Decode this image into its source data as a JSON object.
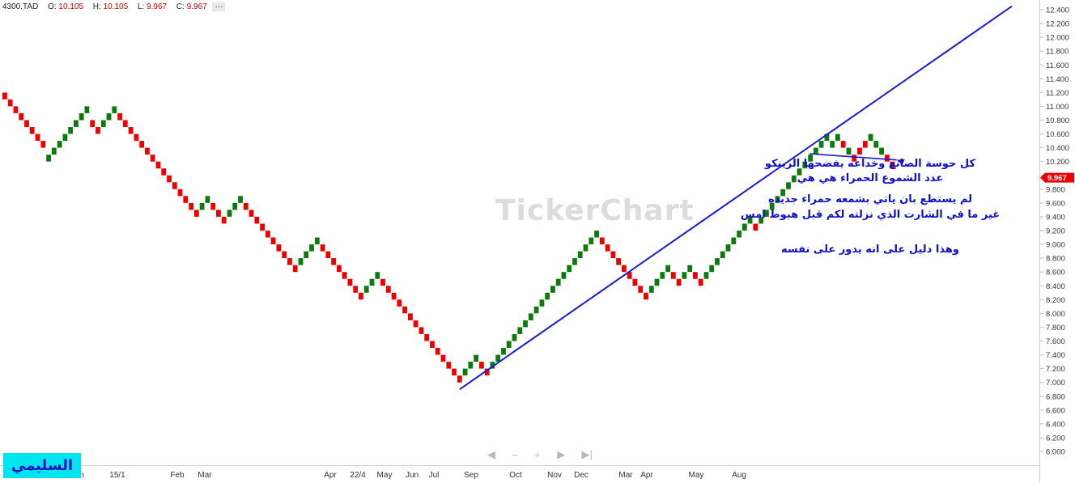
{
  "header": {
    "symbol": "4300.TAD",
    "open_label": "O:",
    "open": "10.105",
    "high_label": "H:",
    "high": "10.105",
    "low_label": "L:",
    "low": "9.967",
    "close_label": "C:",
    "close": "9.967",
    "more": "···"
  },
  "watermark": "TickerChart",
  "annotations": {
    "line1": "كل حوسة الصانع وخداعه يفضحها الرينكو",
    "line2": "عدد الشموع الحمراء هي هي",
    "line3": "لم يستطع بان ياتي بشمعه حمراء جديده",
    "line4": "غير ما في الشارت الذي نزلته لكم قبل هبوط امس",
    "line5": "وهذا دليل على انه يدور على نفسه"
  },
  "brand": "السليمي",
  "navigator": [
    "◀",
    "−",
    "+",
    "▶",
    "▶|"
  ],
  "colors": {
    "up": "#0d7a0d",
    "down": "#ee0000",
    "trendline": "#1a1ad6",
    "price_tag": "#ee0000",
    "annotation": "#1010c8"
  },
  "chart_data": {
    "type": "renko",
    "brick_size": 0.1,
    "ylim": [
      5.9,
      12.45
    ],
    "ytick_labels": [
      "12.400",
      "12.200",
      "12.000",
      "11.800",
      "11.600",
      "11.400",
      "11.200",
      "11.000",
      "10.800",
      "10.600",
      "10.400",
      "10.200",
      "10.000",
      "9.800",
      "9.600",
      "9.400",
      "9.200",
      "9.000",
      "8.800",
      "8.600",
      "8.400",
      "8.200",
      "8.000",
      "7.800",
      "7.600",
      "7.400",
      "7.200",
      "7.000",
      "6.800",
      "6.600",
      "6.400",
      "6.200",
      "6.000"
    ],
    "xtick_labels": [
      "Jan",
      "15/1",
      "Feb",
      "Mar",
      "Apr",
      "22/4",
      "May",
      "Jun",
      "Jul",
      "Sep",
      "Oct",
      "Nov",
      "Dec",
      "Mar",
      "Apr",
      "May",
      "Aug"
    ],
    "current_price": "9.967",
    "brick_tops": [
      11.2,
      11.1,
      11.0,
      10.9,
      10.8,
      10.7,
      10.6,
      10.5,
      10.3,
      10.4,
      10.5,
      10.6,
      10.7,
      10.8,
      10.9,
      11.0,
      10.8,
      10.7,
      10.8,
      10.9,
      11.0,
      10.9,
      10.8,
      10.7,
      10.6,
      10.5,
      10.4,
      10.3,
      10.2,
      10.1,
      10.0,
      9.9,
      9.8,
      9.7,
      9.6,
      9.5,
      9.6,
      9.7,
      9.6,
      9.5,
      9.4,
      9.5,
      9.6,
      9.7,
      9.6,
      9.5,
      9.4,
      9.3,
      9.2,
      9.1,
      9.0,
      8.9,
      8.8,
      8.7,
      8.8,
      8.9,
      9.0,
      9.1,
      9.0,
      8.9,
      8.8,
      8.7,
      8.6,
      8.5,
      8.4,
      8.3,
      8.4,
      8.5,
      8.6,
      8.5,
      8.4,
      8.3,
      8.2,
      8.1,
      8.0,
      7.9,
      7.8,
      7.7,
      7.6,
      7.5,
      7.4,
      7.3,
      7.2,
      7.1,
      7.2,
      7.3,
      7.4,
      7.3,
      7.2,
      7.3,
      7.4,
      7.5,
      7.6,
      7.7,
      7.8,
      7.9,
      8.0,
      8.1,
      8.2,
      8.3,
      8.4,
      8.5,
      8.6,
      8.7,
      8.8,
      8.9,
      9.0,
      9.1,
      9.2,
      9.1,
      9.0,
      8.9,
      8.8,
      8.7,
      8.6,
      8.5,
      8.4,
      8.3,
      8.4,
      8.5,
      8.6,
      8.7,
      8.6,
      8.5,
      8.6,
      8.7,
      8.6,
      8.5,
      8.6,
      8.7,
      8.8,
      8.9,
      9.0,
      9.1,
      9.2,
      9.3,
      9.4,
      9.3,
      9.4,
      9.5,
      9.6,
      9.7,
      9.8,
      9.9,
      10.0,
      10.1,
      10.2,
      10.3,
      10.4,
      10.5,
      10.6,
      10.5,
      10.6,
      10.5,
      10.4,
      10.3,
      10.4,
      10.5,
      10.6,
      10.5,
      10.4,
      10.3,
      10.2
    ],
    "brick_colors": [
      "down",
      "down",
      "down",
      "down",
      "down",
      "down",
      "down",
      "down",
      "up",
      "up",
      "up",
      "up",
      "up",
      "up",
      "up",
      "up",
      "down",
      "down",
      "up",
      "up",
      "up",
      "down",
      "down",
      "down",
      "down",
      "down",
      "down",
      "down",
      "down",
      "down",
      "down",
      "down",
      "down",
      "down",
      "down",
      "down",
      "up",
      "up",
      "down",
      "down",
      "down",
      "up",
      "up",
      "up",
      "down",
      "down",
      "down",
      "down",
      "down",
      "down",
      "down",
      "down",
      "down",
      "down",
      "up",
      "up",
      "up",
      "up",
      "down",
      "down",
      "down",
      "down",
      "down",
      "down",
      "down",
      "down",
      "up",
      "up",
      "up",
      "down",
      "down",
      "down",
      "down",
      "down",
      "down",
      "down",
      "down",
      "down",
      "down",
      "down",
      "down",
      "down",
      "down",
      "down",
      "up",
      "up",
      "up",
      "down",
      "down",
      "up",
      "up",
      "up",
      "up",
      "up",
      "up",
      "up",
      "up",
      "up",
      "up",
      "up",
      "up",
      "up",
      "up",
      "up",
      "up",
      "up",
      "up",
      "up",
      "up",
      "down",
      "down",
      "down",
      "down",
      "down",
      "down",
      "down",
      "down",
      "down",
      "up",
      "up",
      "up",
      "up",
      "down",
      "down",
      "up",
      "up",
      "down",
      "down",
      "up",
      "up",
      "up",
      "up",
      "up",
      "up",
      "up",
      "up",
      "up",
      "down",
      "up",
      "up",
      "up",
      "up",
      "up",
      "up",
      "up",
      "up",
      "up",
      "up",
      "up",
      "up",
      "up",
      "up",
      "up",
      "down",
      "up",
      "down",
      "down",
      "down",
      "up",
      "up",
      "up",
      "down",
      "down",
      "down",
      "down"
    ],
    "trendline": {
      "from_price": 6.9,
      "to_price": 12.45
    }
  }
}
